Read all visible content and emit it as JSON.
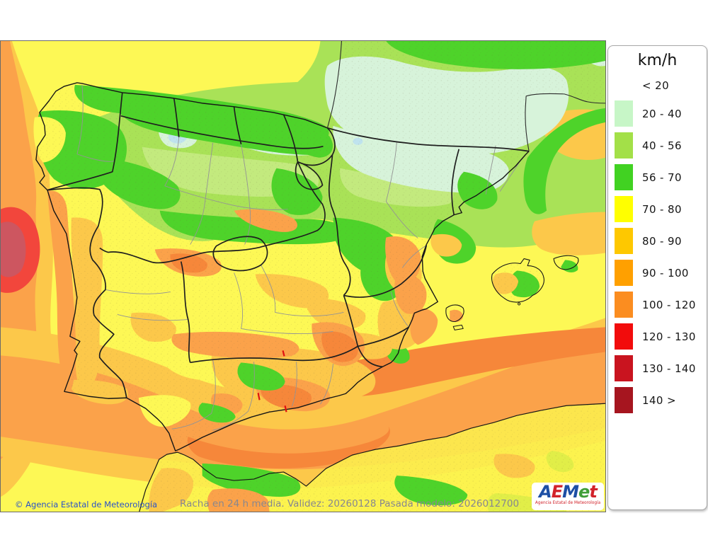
{
  "legend": {
    "title": "km/h",
    "items": [
      {
        "range": "< 20",
        "color": null
      },
      {
        "range": "20 - 40",
        "color": "#c7f6c7"
      },
      {
        "range": "40 - 56",
        "color": "#a3e048"
      },
      {
        "range": "56 - 70",
        "color": "#41d222"
      },
      {
        "range": "70 - 80",
        "color": "#ffff00"
      },
      {
        "range": "80 - 90",
        "color": "#fec800"
      },
      {
        "range": "90 - 100",
        "color": "#ffa000"
      },
      {
        "range": "100 - 120",
        "color": "#fb8d20"
      },
      {
        "range": "120 - 130",
        "color": "#f20c0c"
      },
      {
        "range": "130 - 140",
        "color": "#c9141f"
      },
      {
        "range": "140 >",
        "color": "#a6151f"
      }
    ]
  },
  "captions": {
    "copyright": "© Agencia Estatal de Meteorología",
    "model_info": "Racha en 24 h media. Validez: 20260128 Pasada modelo: 2026012700"
  },
  "logo": {
    "word": "AEMet",
    "letters": [
      {
        "ch": "A",
        "color": "#1d4fa5"
      },
      {
        "ch": "E",
        "color": "#d2232b"
      },
      {
        "ch": "M",
        "color": "#1d4fa5"
      },
      {
        "ch": "e",
        "color": "#3f9e38"
      },
      {
        "ch": "t",
        "color": "#d2232b"
      }
    ],
    "subtitle": "Agencia Estatal de Meteorología",
    "subtitle_color": "#d2232b"
  }
}
